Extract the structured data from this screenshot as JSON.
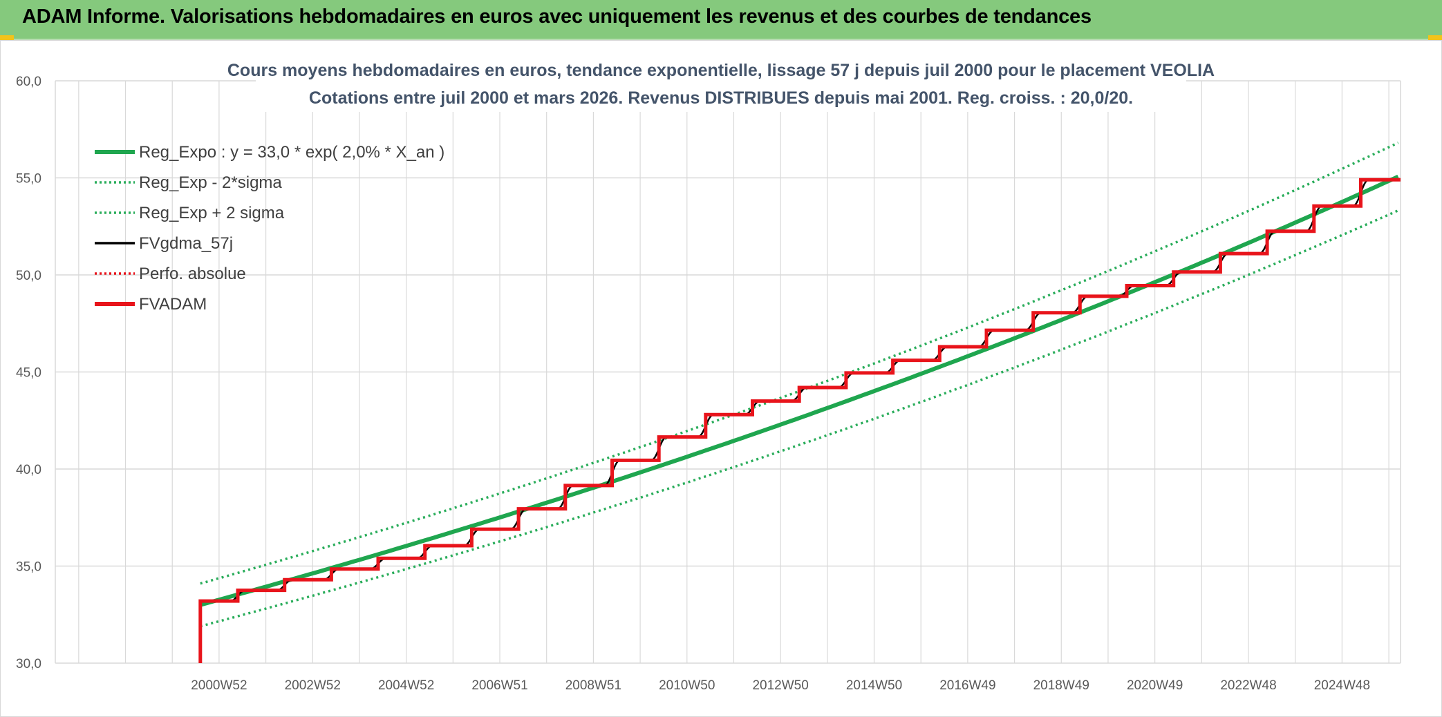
{
  "banner": {
    "title": "ADAM Informe. Valorisations hebdomadaires en euros avec uniquement les revenus et des courbes de tendances"
  },
  "colors": {
    "banner_bg": "#85c97d",
    "reg_green": "#1fa64f",
    "band_green": "#2aad5b",
    "fv_black": "#000000",
    "adam_red": "#e8141b",
    "grid": "#d9d9d9"
  },
  "chart_data": {
    "type": "line",
    "title": "Cours moyens hebdomadaires en euros, tendance exponentielle, lissage 57 j depuis juil 2000 pour le placement VEOLIA",
    "subtitle": "Cotations entre juil 2000 et mars 2026. Revenus DISTRIBUES depuis mai 2001. Reg. croiss. : 20,0/20.",
    "ylim": [
      30,
      60
    ],
    "y_ticks": [
      "30,0",
      "35,0",
      "40,0",
      "45,0",
      "50,0",
      "55,0",
      "60,0"
    ],
    "x_ticks": [
      "2000W52",
      "2002W52",
      "2004W52",
      "2006W51",
      "2008W51",
      "2010W50",
      "2012W50",
      "2014W50",
      "2016W49",
      "2018W49",
      "2020W49",
      "2022W48",
      "2024W48"
    ],
    "x_tick_years": [
      2001,
      2003,
      2005,
      2007,
      2009,
      2011,
      2013,
      2015,
      2017,
      2019,
      2021,
      2023,
      2025
    ],
    "xlim_years": [
      1997.5,
      2026.25
    ],
    "series_start_year": 2000.6,
    "legend_position": "top-left",
    "grid": true,
    "series": [
      {
        "name": "Reg_Expo : y = 33,0 * exp( 2,0% *  X_an )",
        "kind": "expo",
        "a": 33.0,
        "rate": 0.02,
        "offset": 0,
        "color": "#1fa64f",
        "style": "solid-thick"
      },
      {
        "name": "Reg_Exp - 2*sigma",
        "kind": "expo",
        "a": 33.0,
        "rate": 0.02,
        "offset": -1.1,
        "color": "#2aad5b",
        "style": "dotted"
      },
      {
        "name": "Reg_Exp + 2 sigma",
        "kind": "expo",
        "a": 33.0,
        "rate": 0.02,
        "offset": 1.1,
        "color": "#2aad5b",
        "style": "dotted"
      },
      {
        "name": "FVgdma_57j",
        "kind": "smooth-steps",
        "color": "#000000",
        "style": "solid"
      },
      {
        "name": "Perfo. absolue",
        "kind": "hidden",
        "color": "#e8141b",
        "style": "dotted"
      },
      {
        "name": "FVADAM",
        "kind": "steps",
        "color": "#e8141b",
        "style": "solid-thick"
      }
    ],
    "fvadam_steps": {
      "years": [
        2000.6,
        2001.4,
        2002.4,
        2003.4,
        2004.4,
        2005.4,
        2006.4,
        2007.4,
        2008.4,
        2009.4,
        2010.4,
        2011.4,
        2012.4,
        2013.4,
        2014.4,
        2015.4,
        2016.4,
        2017.4,
        2018.4,
        2019.4,
        2020.4,
        2021.4,
        2022.4,
        2023.4,
        2024.4,
        2025.4
      ],
      "values": [
        33.2,
        33.75,
        34.3,
        34.85,
        35.4,
        36.05,
        36.9,
        37.95,
        39.15,
        40.45,
        41.65,
        42.8,
        43.5,
        44.2,
        44.95,
        45.6,
        46.3,
        47.15,
        48.05,
        48.9,
        49.45,
        50.15,
        51.1,
        52.25,
        53.55,
        54.9
      ]
    },
    "fvadam_start_value": 30.0
  }
}
